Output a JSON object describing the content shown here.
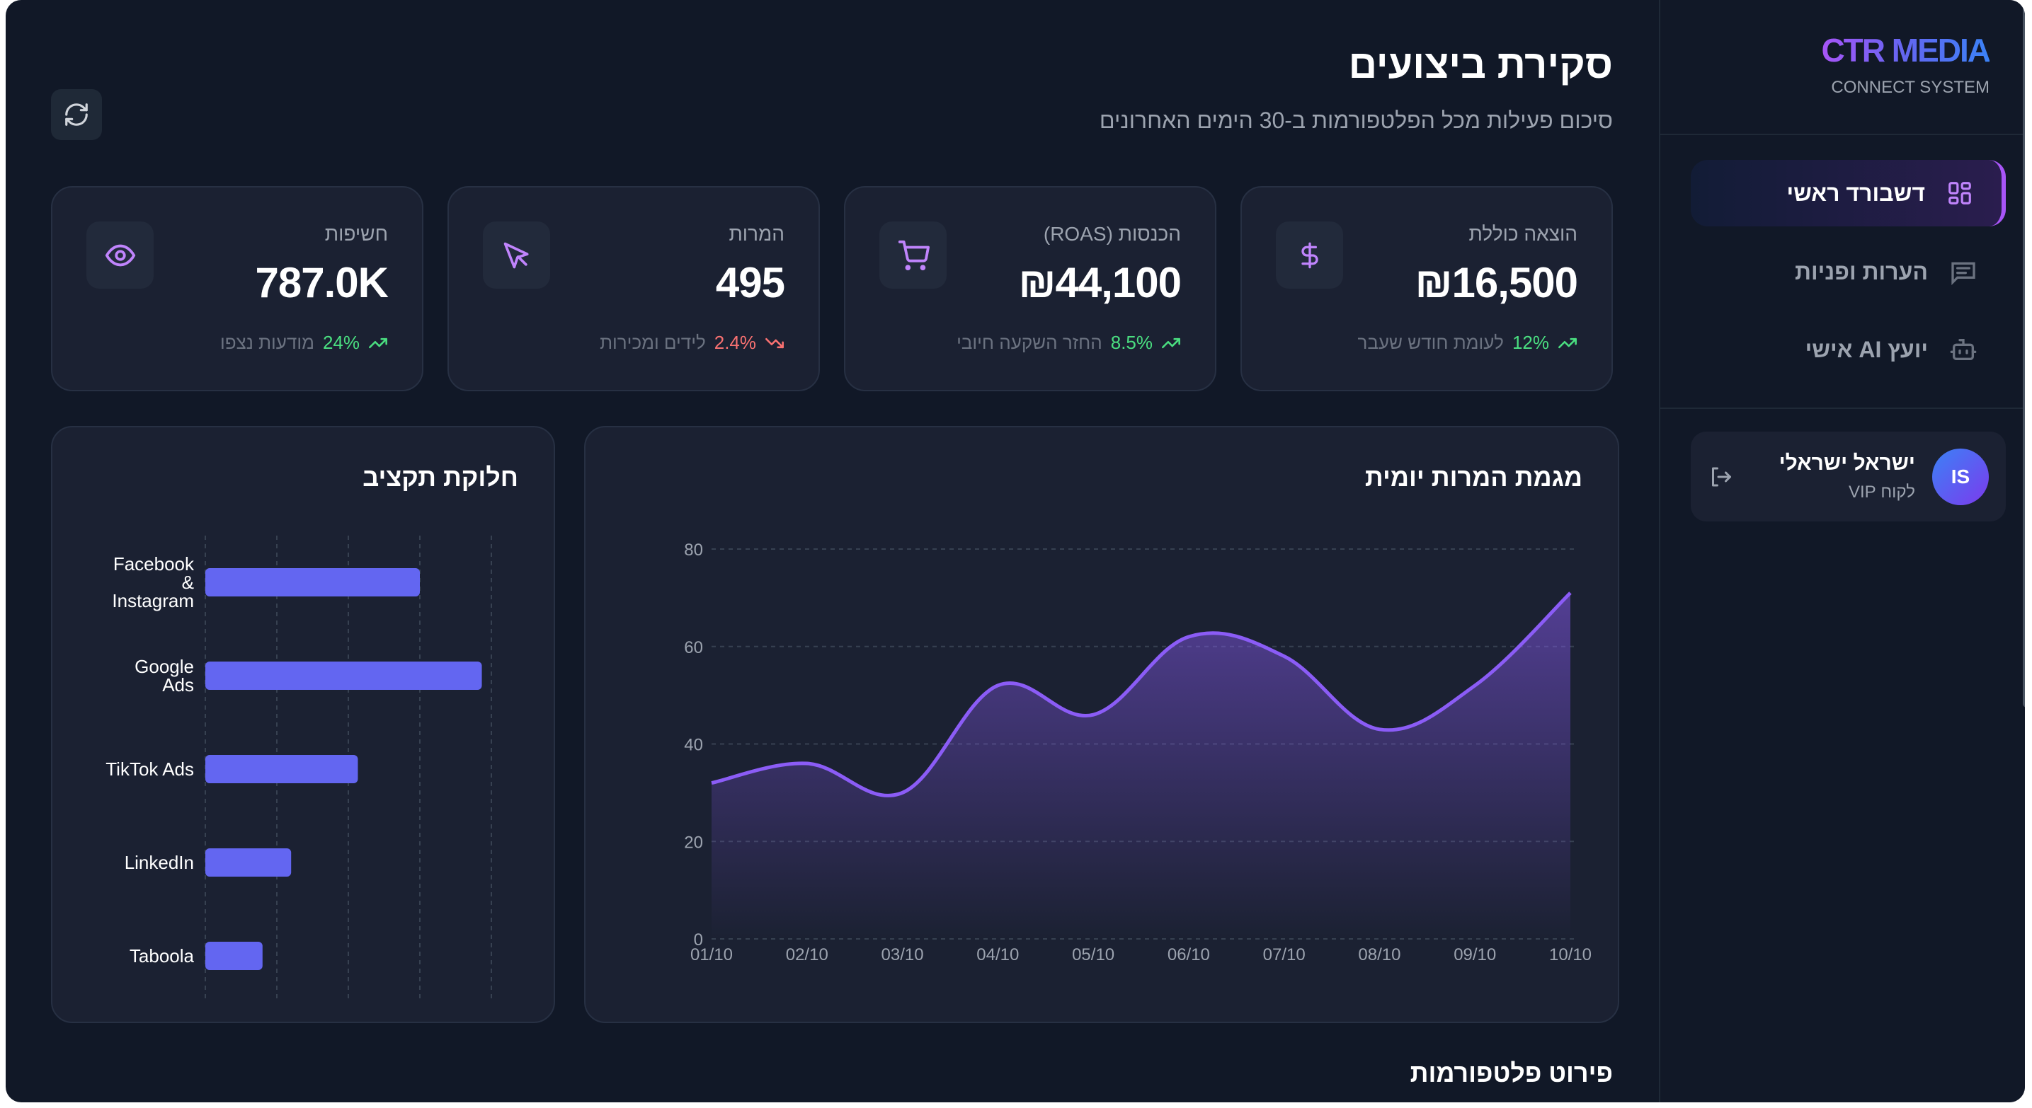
{
  "header": {
    "title": "סקירת ביצועים",
    "subtitle": "סיכום פעילות מכל הפלטפורמות ב-30 הימים האחרונים",
    "refresh_icon": "refresh-icon"
  },
  "stats": [
    {
      "label": "הוצאה כוללת",
      "value": "₪16,500",
      "trend": "12%",
      "trend_dir": "up",
      "desc": "לעומת חודש שעבר",
      "icon": "dollar-icon"
    },
    {
      "label": "הכנסות (ROAS)",
      "value": "₪44,100",
      "trend": "8.5%",
      "trend_dir": "up",
      "desc": "החזר השקעה חיובי",
      "icon": "cart-icon"
    },
    {
      "label": "המרות",
      "value": "495",
      "trend": "2.4%",
      "trend_dir": "down",
      "desc": "לידים ומכירות",
      "icon": "cursor-icon"
    },
    {
      "label": "חשיפות",
      "value": "787.0K",
      "trend": "24%",
      "trend_dir": "up",
      "desc": "מודעות נצפו",
      "icon": "eye-icon"
    }
  ],
  "colors": {
    "accent": "#8b5cf6",
    "bar": "#6366f1",
    "up": "#4ade80",
    "down": "#f87171",
    "background": "#111827",
    "card": "#1b2132"
  },
  "line_chart_title": "מגמת המרות יומית",
  "bar_chart_title": "חלוקת תקציב",
  "section_title": "פירוט פלטפורמות",
  "chart_data": [
    {
      "type": "area",
      "x": [
        "01/10",
        "02/10",
        "03/10",
        "04/10",
        "05/10",
        "06/10",
        "07/10",
        "08/10",
        "09/10",
        "10/10"
      ],
      "values": [
        32,
        36,
        30,
        52,
        46,
        62,
        58,
        43,
        52,
        71
      ],
      "ylim": [
        0,
        80
      ],
      "yticks": [
        "0",
        "20",
        "40",
        "60",
        "80"
      ],
      "grid": true,
      "color": "#8b5cf6"
    },
    {
      "type": "bar",
      "orientation": "horizontal",
      "categories": [
        [
          "Facebook",
          "&",
          "Instagram"
        ],
        [
          "Google",
          "Ads"
        ],
        [
          "TikTok Ads"
        ],
        [
          "LinkedIn"
        ],
        [
          "Taboola"
        ]
      ],
      "values": [
        4500,
        5800,
        3200,
        1800,
        1200
      ],
      "xlim": [
        0,
        6000
      ],
      "grid": true,
      "color": "#6366f1"
    }
  ],
  "sidebar": {
    "logo": "CTR MEDIA",
    "logo_sub": "CONNECT SYSTEM",
    "items": [
      {
        "label": "דשבורד ראשי",
        "icon": "dashboard-grid-icon",
        "active": true
      },
      {
        "label": "הערות ופניות",
        "icon": "message-icon",
        "active": false
      },
      {
        "label": "יועץ AI אישי",
        "icon": "bot-icon",
        "active": false
      }
    ],
    "user": {
      "initials": "IS",
      "name": "ישראל ישראלי",
      "role": "לקוח VIP"
    }
  }
}
